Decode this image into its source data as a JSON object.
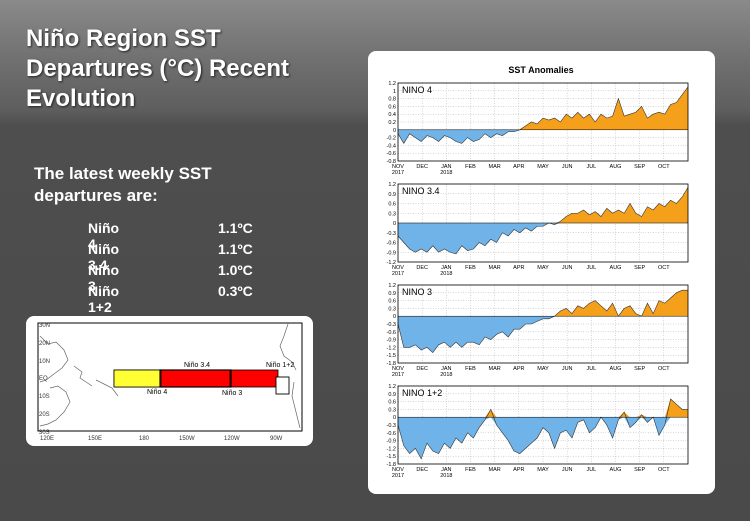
{
  "slide": {
    "title_line1": "Niño Region SST",
    "title_line2": "Departures (°C) Recent",
    "title_line3": "Evolution",
    "subtitle_line1": "The latest weekly SST",
    "subtitle_line2": "departures are:",
    "departures": [
      {
        "region": "Niño 4",
        "value": "1.1ºC"
      },
      {
        "region": "Niño 3.4",
        "value": "1.1ºC"
      },
      {
        "region": "Niño 3",
        "value": "1.0ºC"
      },
      {
        "region": "Niño 1+2",
        "value": "0.3ºC"
      }
    ]
  },
  "map": {
    "lat_labels": [
      "30N",
      "20N",
      "10N",
      "EQ",
      "10S",
      "20S",
      "30S"
    ],
    "lon_labels": [
      "120E",
      "150E",
      "180",
      "150W",
      "120W",
      "90W"
    ],
    "regions": [
      {
        "label": "Niño 4",
        "color": "#ffff33"
      },
      {
        "label": "Niño 3.4",
        "color": "#000000"
      },
      {
        "label": "Niño 3",
        "color": "#ff0000"
      },
      {
        "label": "Niño 1+2",
        "color": "#ffffff"
      }
    ]
  },
  "colors": {
    "positive": "#f5a01a",
    "negative": "#6fb3e8"
  },
  "chart_data": {
    "type": "area",
    "title": "SST Anomalies",
    "months": [
      "NOV\n2017",
      "DEC",
      "JAN\n2018",
      "FEB",
      "MAR",
      "APR",
      "MAY",
      "JUN",
      "JUL",
      "AUG",
      "SEP",
      "OCT"
    ],
    "x_start": "2017-11-01",
    "x_end": "2018-10-31",
    "panels": [
      {
        "name": "NINO 4",
        "ylim": [
          -0.8,
          1.2
        ],
        "yticks": [
          "1.2",
          "1",
          "0.8",
          "0.6",
          "0.4",
          "0.2",
          "0",
          "-0.2",
          "-0.4",
          "-0.6",
          "-0.8"
        ],
        "values": [
          -0.1,
          -0.35,
          -0.1,
          -0.2,
          -0.3,
          -0.15,
          -0.2,
          -0.3,
          -0.15,
          -0.2,
          -0.3,
          -0.35,
          -0.2,
          -0.3,
          -0.25,
          -0.1,
          -0.2,
          -0.1,
          -0.15,
          -0.05,
          -0.05,
          0.0,
          0.1,
          0.2,
          0.15,
          0.3,
          0.25,
          0.3,
          0.2,
          0.4,
          0.3,
          0.45,
          0.3,
          0.4,
          0.2,
          0.4,
          0.3,
          0.35,
          0.8,
          0.35,
          0.4,
          0.45,
          0.6,
          0.3,
          0.4,
          0.45,
          0.4,
          0.65,
          0.7,
          0.9,
          1.1
        ]
      },
      {
        "name": "NINO 3.4",
        "ylim": [
          -1.2,
          1.2
        ],
        "yticks": [
          "1.2",
          "0.9",
          "0.6",
          "0.3",
          "0",
          "-0.3",
          "-0.6",
          "-0.9",
          "-1.2"
        ],
        "values": [
          -0.4,
          -0.6,
          -0.8,
          -0.9,
          -0.8,
          -0.9,
          -0.7,
          -0.9,
          -0.8,
          -0.9,
          -0.95,
          -0.7,
          -0.85,
          -0.8,
          -0.6,
          -0.7,
          -0.5,
          -0.6,
          -0.3,
          -0.4,
          -0.2,
          -0.3,
          -0.15,
          -0.25,
          -0.1,
          -0.1,
          0.0,
          -0.05,
          0.05,
          0.2,
          0.3,
          0.3,
          0.4,
          0.25,
          0.35,
          0.2,
          0.45,
          0.3,
          0.4,
          0.3,
          0.6,
          0.3,
          0.2,
          0.5,
          0.4,
          0.6,
          0.5,
          0.7,
          0.6,
          0.8,
          1.1
        ]
      },
      {
        "name": "NINO 3",
        "ylim": [
          -1.8,
          1.2
        ],
        "yticks": [
          "1.2",
          "0.9",
          "0.6",
          "0.3",
          "0",
          "-0.3",
          "-0.6",
          "-0.9",
          "-1.2",
          "-1.5",
          "-1.8"
        ],
        "values": [
          -0.3,
          -1.2,
          -1.2,
          -1.1,
          -1.3,
          -1.2,
          -1.4,
          -1.1,
          -1.0,
          -1.2,
          -1.0,
          -1.2,
          -1.0,
          -1.0,
          -1.1,
          -0.8,
          -0.9,
          -0.7,
          -0.6,
          -0.8,
          -0.5,
          -0.5,
          -0.3,
          -0.3,
          -0.2,
          -0.1,
          -0.1,
          0.0,
          0.2,
          0.3,
          0.1,
          0.4,
          0.3,
          0.5,
          0.6,
          0.4,
          0.2,
          0.5,
          0.0,
          0.3,
          0.4,
          0.1,
          0.0,
          0.5,
          0.1,
          0.6,
          0.5,
          0.7,
          0.9,
          1.0,
          1.0
        ]
      },
      {
        "name": "NINO 1+2",
        "ylim": [
          -1.8,
          1.2
        ],
        "yticks": [
          "1.2",
          "0.9",
          "0.6",
          "0.3",
          "0",
          "-0.3",
          "-0.6",
          "-0.9",
          "-1.2",
          "-1.5",
          "-1.8"
        ],
        "values": [
          -0.3,
          -1.1,
          -1.4,
          -1.2,
          -1.6,
          -1.0,
          -1.3,
          -1.4,
          -1.0,
          -1.2,
          -0.8,
          -1.0,
          -0.6,
          -0.8,
          -0.4,
          -0.1,
          0.3,
          -0.3,
          -0.6,
          -0.9,
          -1.3,
          -1.4,
          -1.2,
          -1.0,
          -0.8,
          -0.4,
          -0.6,
          -1.2,
          -0.6,
          -0.5,
          -0.8,
          -0.2,
          -0.1,
          -0.6,
          -0.4,
          0.0,
          -0.3,
          -0.8,
          -0.1,
          0.2,
          -0.4,
          -0.2,
          0.1,
          -0.2,
          0.0,
          -0.7,
          -0.3,
          0.7,
          0.5,
          0.3,
          0.3
        ]
      }
    ],
    "grid": true
  }
}
